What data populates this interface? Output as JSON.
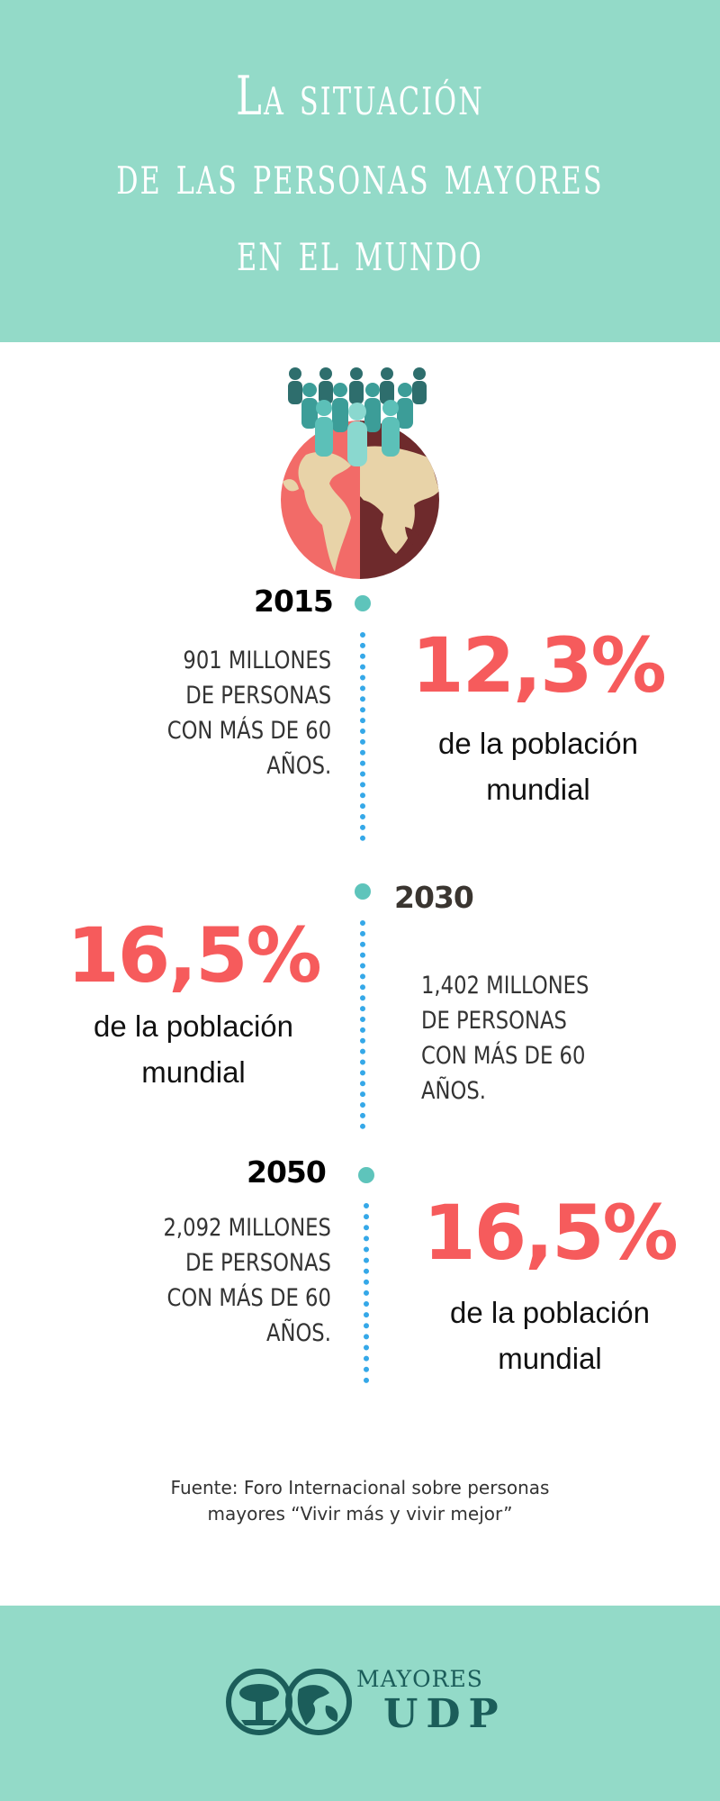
{
  "header": {
    "title_line1": "La situación",
    "title_line2": "de las personas mayores",
    "title_line3": "en el mundo"
  },
  "hero": {
    "icon": "people-on-globe-icon"
  },
  "timeline": [
    {
      "year": "2015",
      "description": [
        "901 MILLONES",
        "DE PERSONAS",
        "CON MÁS DE 60",
        "AÑOS."
      ],
      "percent": "12,3%",
      "percent_caption": [
        "de la población",
        "mundial"
      ]
    },
    {
      "year": "2030",
      "description": [
        "1,402 MILLONES",
        "DE PERSONAS",
        "CON MÁS DE 60",
        "AÑOS."
      ],
      "percent": "16,5%",
      "percent_caption": [
        "de la población",
        "mundial"
      ]
    },
    {
      "year": "2050",
      "description": [
        "2,092 MILLONES",
        "DE PERSONAS",
        "CON MÁS DE 60",
        "AÑOS."
      ],
      "percent": "16,5%",
      "percent_caption": [
        "de la población",
        "mundial"
      ]
    }
  ],
  "source": {
    "line1": "Fuente: Foro Internacional sobre personas",
    "line2": "mayores “Vivir más y vivir mejor”"
  },
  "footer": {
    "logo_top": "MAYORES",
    "logo_bottom": "UDP",
    "logo_icon": "tree-and-globe-icon"
  },
  "colors": {
    "teal_band": "#93dac8",
    "accent_red": "#f65b5c",
    "dot_line": "#35a8e8",
    "dot": "#5ec4bb",
    "logo_dark": "#1b5d5a"
  }
}
